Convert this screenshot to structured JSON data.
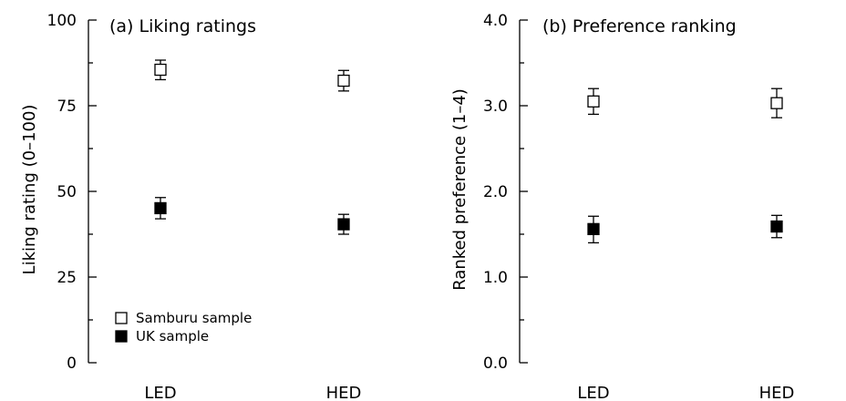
{
  "chart_data": [
    {
      "type": "scatter",
      "title": "(a) Liking ratings",
      "xlabel": "",
      "ylabel": "Liking rating (0–100)",
      "categories": [
        "LED",
        "HED"
      ],
      "ylim": [
        0,
        100
      ],
      "yticks": [
        "0",
        "25",
        "50",
        "75",
        "100"
      ],
      "yticks_minor": true,
      "grid": false,
      "legend_position": "bottom-left",
      "series": [
        {
          "name": "Samburu sample",
          "marker": "open-square",
          "values": [
            85.5,
            82.3
          ],
          "err_low": [
            82.6,
            79.3
          ],
          "err_high": [
            88.3,
            85.3
          ]
        },
        {
          "name": "UK sample",
          "marker": "filled-square",
          "values": [
            45.1,
            40.4
          ],
          "err_low": [
            42.0,
            37.5
          ],
          "err_high": [
            48.2,
            43.3
          ]
        }
      ]
    },
    {
      "type": "scatter",
      "title": "(b) Preference ranking",
      "xlabel": "",
      "ylabel": "Ranked preference (1–4)",
      "categories": [
        "LED",
        "HED"
      ],
      "ylim": [
        0,
        4
      ],
      "yticks": [
        "0.0",
        "1.0",
        "2.0",
        "3.0",
        "4.0"
      ],
      "yticks_minor": true,
      "grid": false,
      "series": [
        {
          "name": "Samburu sample",
          "marker": "open-square",
          "values": [
            3.05,
            3.03
          ],
          "err_low": [
            2.9,
            2.86
          ],
          "err_high": [
            3.2,
            3.2
          ]
        },
        {
          "name": "UK sample",
          "marker": "filled-square",
          "values": [
            1.56,
            1.59
          ],
          "err_low": [
            1.4,
            1.46
          ],
          "err_high": [
            1.71,
            1.72
          ]
        }
      ]
    }
  ]
}
